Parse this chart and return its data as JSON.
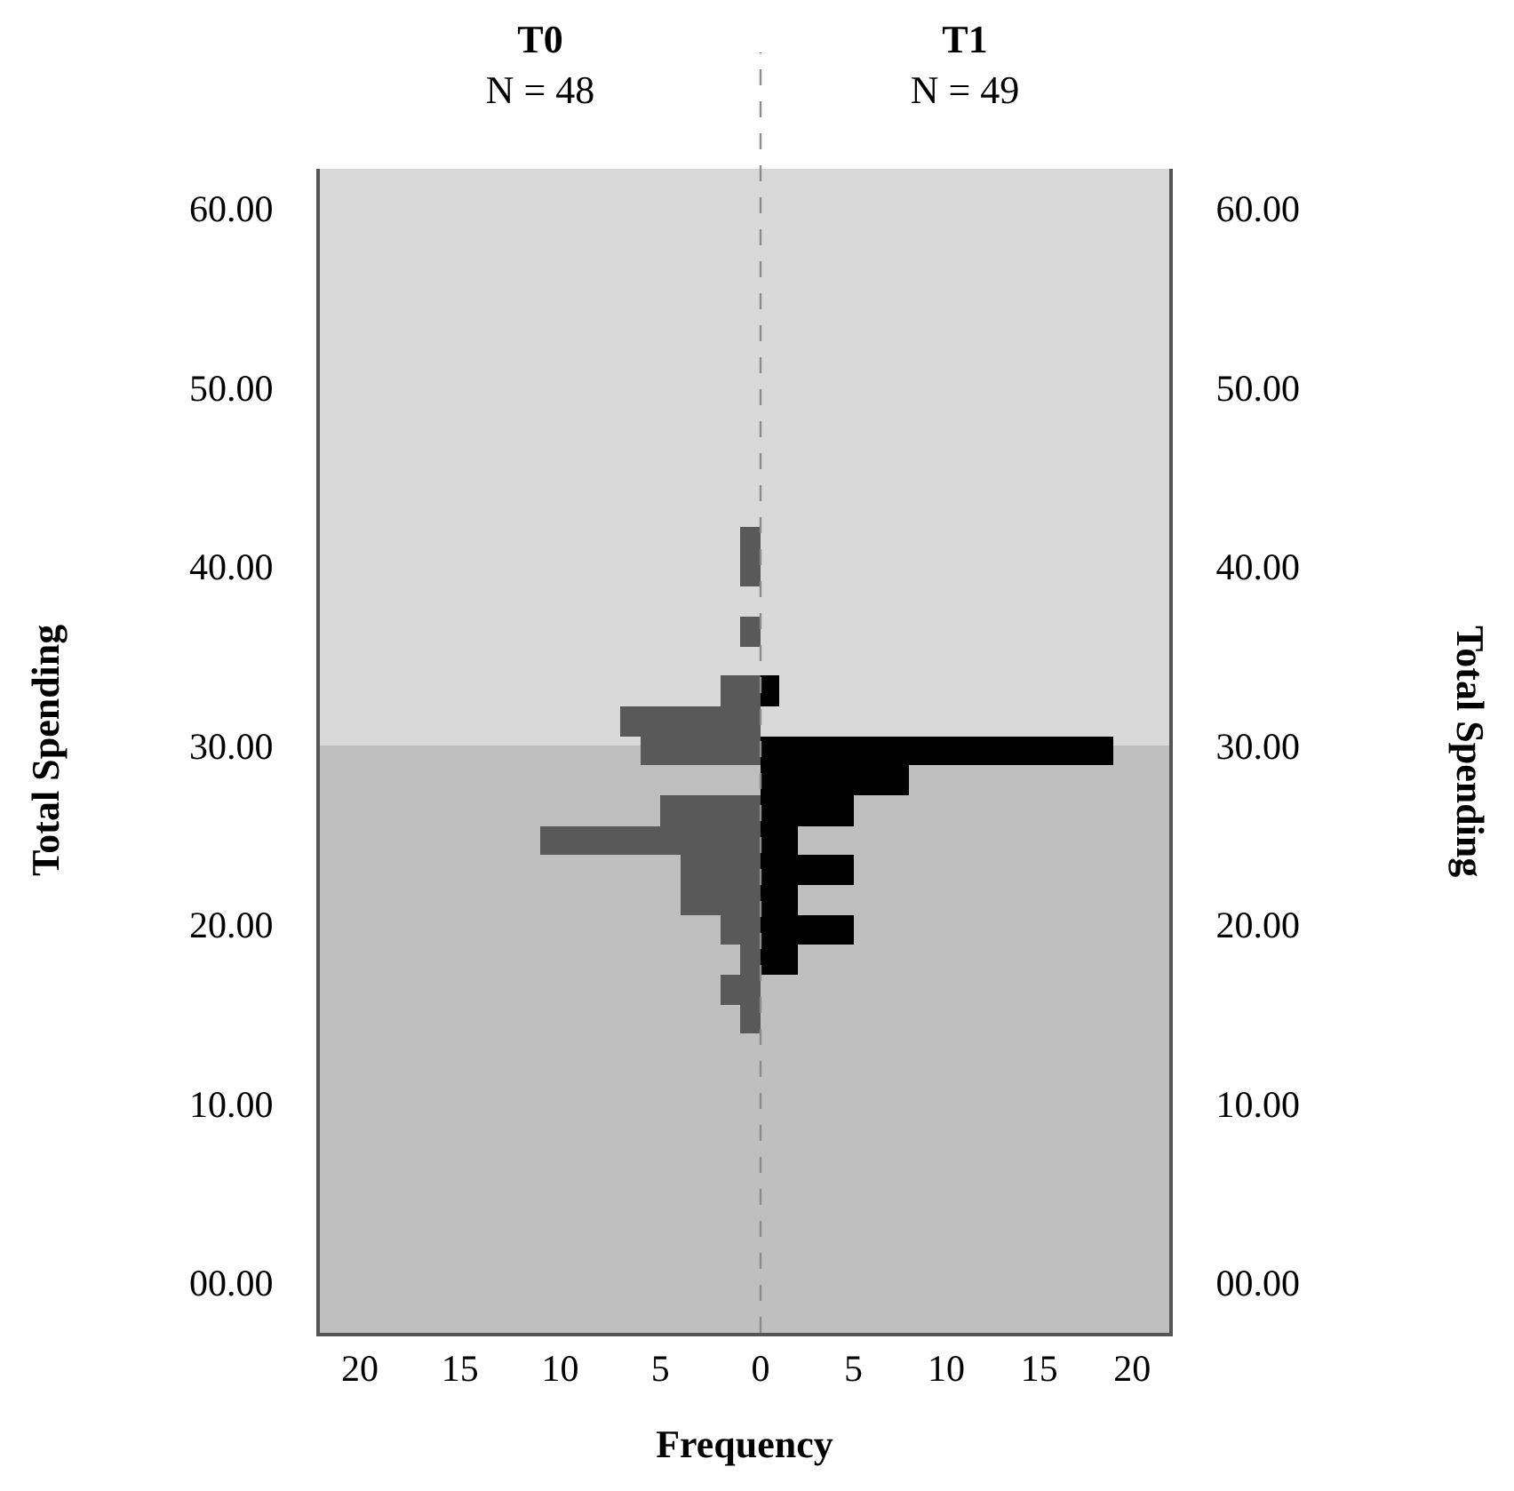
{
  "chart_data": [
    {
      "type": "histogram",
      "title": "T0",
      "subtitle": "N = 48",
      "ylabel": "Total Spending",
      "xlabel": "Frequency",
      "orientation": "horizontal",
      "bins": [
        13.9,
        15.5,
        17.2,
        18.9,
        20.5,
        22.2,
        23.9,
        25.5,
        27.2,
        28.9,
        30.5,
        32.2,
        33.9,
        35.5,
        37.2,
        38.9,
        40.5,
        42.2
      ],
      "values": [
        1,
        2,
        1,
        2,
        4,
        4,
        11,
        5,
        0,
        6,
        7,
        2,
        0,
        1,
        0,
        1,
        1
      ],
      "color": "#595959",
      "xlim": [
        22,
        0
      ],
      "xticks": [
        20,
        15,
        10,
        5,
        0
      ],
      "ylim": [
        -2.8,
        62.2
      ],
      "yticks": [
        {
          "value": 0,
          "label": "00.00"
        },
        {
          "value": 10,
          "label": "10.00"
        },
        {
          "value": 20,
          "label": "20.00"
        },
        {
          "value": 30,
          "label": "30.00"
        },
        {
          "value": 40,
          "label": "40.00"
        },
        {
          "value": 50,
          "label": "50.00"
        },
        {
          "value": 60,
          "label": "60.00"
        }
      ],
      "ref_lines": [
        {
          "axis": "x",
          "value": 0,
          "color": "#8c8c8c",
          "line_style": "dashed"
        }
      ],
      "bands": [
        {
          "axis": "y",
          "from": -2.8,
          "to": 30,
          "color": "#bfbfbf"
        },
        {
          "axis": "y",
          "from": 30,
          "to": 62.2,
          "color": "#d9d9d9"
        }
      ],
      "grid": false
    },
    {
      "type": "histogram",
      "title": "T1",
      "subtitle": "N = 49",
      "ylabel": "Total Spending",
      "orientation": "horizontal",
      "bins": [
        17.2,
        18.9,
        20.5,
        22.2,
        23.9,
        25.5,
        27.2,
        28.9,
        30.5,
        32.2,
        33.9
      ],
      "values": [
        2,
        5,
        2,
        5,
        2,
        5,
        8,
        19,
        0,
        1
      ],
      "color": "#000000",
      "xlim": [
        0,
        22
      ],
      "xticks": [
        5,
        10,
        15,
        20
      ],
      "ylim": [
        -2.8,
        62.2
      ],
      "yticks": [
        {
          "value": 0,
          "label": "00.00"
        },
        {
          "value": 10,
          "label": "10.00"
        },
        {
          "value": 20,
          "label": "20.00"
        },
        {
          "value": 30,
          "label": "30.00"
        },
        {
          "value": 40,
          "label": "40.00"
        },
        {
          "value": 50,
          "label": "50.00"
        },
        {
          "value": 60,
          "label": "60.00"
        }
      ],
      "ref_lines": [
        {
          "axis": "x",
          "value": 0,
          "color": "#8c8c8c",
          "line_style": "dashed"
        }
      ],
      "bands": [
        {
          "axis": "y",
          "from": -2.8,
          "to": 30,
          "color": "#bfbfbf"
        },
        {
          "axis": "y",
          "from": 30,
          "to": 62.2,
          "color": "#d9d9d9"
        }
      ],
      "grid": false
    }
  ]
}
